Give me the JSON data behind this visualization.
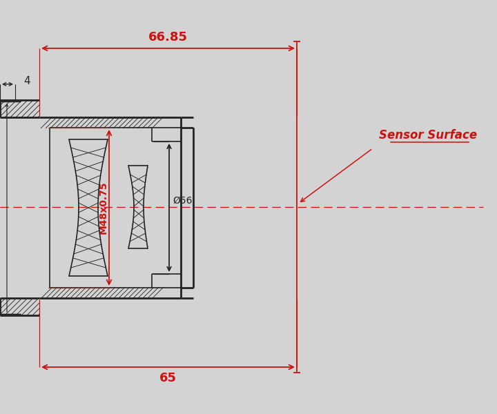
{
  "bg_color": "#d3d3d3",
  "red_color": "#cc1111",
  "black_color": "#222222",
  "label_66_85": "66.85",
  "label_65": "65",
  "label_4": "4",
  "label_m48": "M48x0.75",
  "label_phi56": "Ø56",
  "label_sensor": "Sensor Surface",
  "figsize": [
    7.2,
    6.0
  ],
  "dpi": 100
}
